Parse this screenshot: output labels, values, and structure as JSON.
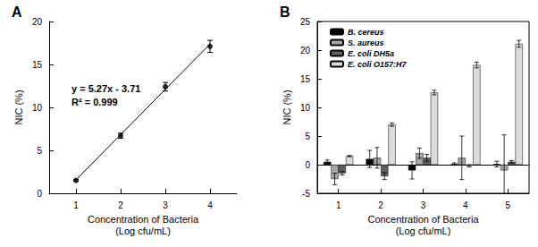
{
  "chart_data": [
    {
      "type": "scatter",
      "title": "A",
      "x_label": "Concentration of Bacteria\n(Log cfu/mL)",
      "y_label": "NIC (%)",
      "annotations": [
        "y = 5.27x - 3.71",
        "R² = 0.999"
      ],
      "series": [
        {
          "type": "scatter",
          "marker": "circle",
          "color": "#000000",
          "x": [
            1,
            2,
            3,
            4
          ],
          "values": [
            1.5,
            6.7,
            12.4,
            17.1
          ],
          "errors": [
            0.1,
            0.3,
            0.5,
            0.7
          ]
        },
        {
          "type": "line",
          "line_style": "solid",
          "color": "#000000",
          "x": [
            1,
            4
          ],
          "values": [
            1.56,
            17.37
          ]
        }
      ],
      "xlim": [
        0.4,
        4.6
      ],
      "xticks": [
        1,
        2,
        3,
        4
      ],
      "ylim": [
        0,
        20
      ],
      "yticks": [
        0,
        5,
        10,
        15,
        20
      ],
      "grid": false
    },
    {
      "type": "bar",
      "title": "B",
      "x_label": "Concentration of Bacteria\n(Log cfu/mL)",
      "y_label": "NIC (%)",
      "categories": [
        "1",
        "2",
        "3",
        "4",
        "5"
      ],
      "series": [
        {
          "name": "B. cereus",
          "color": "#000000",
          "values": [
            0.5,
            1.0,
            -1.0,
            0.1,
            0.1
          ],
          "errors": [
            0.3,
            1.5,
            1.5,
            0.2,
            0.5
          ]
        },
        {
          "name": "S. aureus",
          "color": "#a6a6a6",
          "values": [
            -2.5,
            1.2,
            2.0,
            1.2,
            -1.0
          ],
          "errors": [
            1.0,
            1.8,
            0.9,
            3.8,
            6.2
          ]
        },
        {
          "name": "E. coli DH5a",
          "color": "#5f5f5f",
          "values": [
            -1.5,
            -2.0,
            1.2,
            -0.2,
            0.5
          ],
          "errors": [
            0.3,
            0.6,
            0.6,
            0.2,
            0.2
          ]
        },
        {
          "name": "E. coli O157:H7",
          "color": "#dcdcdc",
          "values": [
            1.5,
            7.0,
            12.6,
            17.4,
            21.1
          ],
          "errors": [
            0.1,
            0.3,
            0.4,
            0.5,
            0.6
          ]
        }
      ],
      "ylim": [
        -5,
        25
      ],
      "yticks": [
        -5,
        0,
        5,
        10,
        15,
        20,
        25
      ],
      "legend": "upper left",
      "grid": false
    }
  ]
}
